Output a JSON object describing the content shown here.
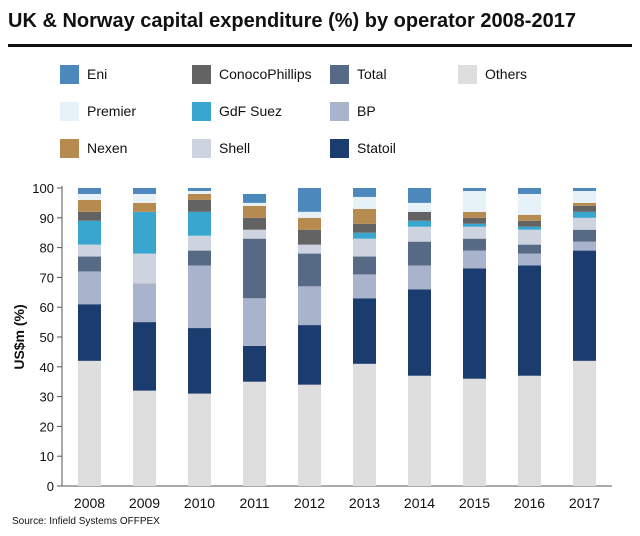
{
  "chart_data": {
    "type": "bar",
    "stacked": true,
    "title": "UK & Norway capital expenditure (%) by operator 2008-2017",
    "xlabel": "",
    "ylabel": "US$m (%)",
    "ylim": [
      0,
      100
    ],
    "yticks": [
      0,
      10,
      20,
      30,
      40,
      50,
      60,
      70,
      80,
      90,
      100
    ],
    "categories": [
      "2008",
      "2009",
      "2010",
      "2011",
      "2012",
      "2013",
      "2014",
      "2015",
      "2016",
      "2017"
    ],
    "series": [
      {
        "name": "Others",
        "color": "#dedede",
        "values": [
          42,
          32,
          31,
          35,
          34,
          41,
          37,
          36,
          37,
          42
        ]
      },
      {
        "name": "Statoil",
        "color": "#1b3c6e",
        "values": [
          19,
          23,
          22,
          12,
          20,
          22,
          29,
          37,
          37,
          37
        ]
      },
      {
        "name": "BP",
        "color": "#a9b4cc",
        "values": [
          11,
          13,
          21,
          16,
          13,
          8,
          8,
          6,
          4,
          3
        ]
      },
      {
        "name": "Total",
        "color": "#566a85",
        "values": [
          5,
          0,
          5,
          20,
          11,
          6,
          8,
          4,
          3,
          4
        ]
      },
      {
        "name": "Shell",
        "color": "#cdd3df",
        "values": [
          4,
          10,
          5,
          3,
          3,
          6,
          5,
          4,
          5,
          4
        ]
      },
      {
        "name": "GdF Suez",
        "color": "#38a6cf",
        "values": [
          8,
          14,
          8,
          0,
          0,
          2,
          2,
          1,
          1,
          2
        ]
      },
      {
        "name": "ConocoPhillips",
        "color": "#636363",
        "values": [
          3,
          0,
          4,
          4,
          5,
          3,
          3,
          2,
          2,
          2
        ]
      },
      {
        "name": "Nexen",
        "color": "#b78a4f",
        "values": [
          4,
          3,
          2,
          4,
          4,
          5,
          0,
          2,
          2,
          1
        ]
      },
      {
        "name": "Premier",
        "color": "#e6f2f7",
        "values": [
          2,
          3,
          1,
          1,
          2,
          4,
          3,
          7,
          7,
          4
        ]
      },
      {
        "name": "Eni",
        "color": "#4d88bd",
        "values": [
          2,
          2,
          1,
          3,
          8,
          3,
          5,
          1,
          2,
          1
        ]
      }
    ],
    "legend": {
      "placement": "top",
      "entries": [
        "Eni",
        "ConocoPhillips",
        "Total",
        "Others",
        "Premier",
        "GdF Suez",
        "BP",
        "Nexen",
        "Shell",
        "Statoil"
      ]
    }
  },
  "source": "Source: Infield Systems OFFPEX"
}
